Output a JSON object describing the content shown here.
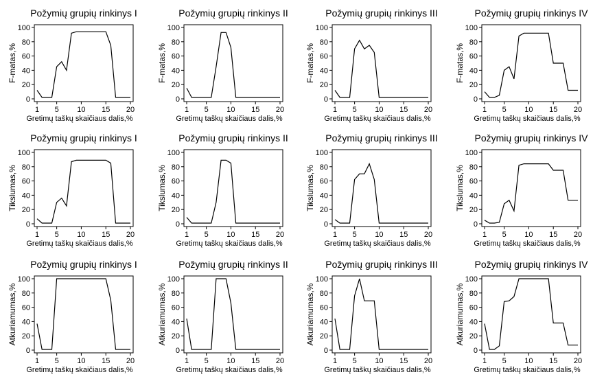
{
  "chart_data": [
    {
      "type": "line",
      "title": "Požymių grupių rinkinys I",
      "xlabel": "Gretimų taškų skaičiaus dalis,%",
      "ylabel": "F-matas,%",
      "xlim": [
        1,
        20
      ],
      "ylim": [
        0,
        100
      ],
      "xticks": [
        "1",
        "5",
        "10",
        "15",
        "20"
      ],
      "yticks": [
        "0",
        "20",
        "40",
        "60",
        "80",
        "100"
      ],
      "series": [
        {
          "x": [
            1,
            2,
            3,
            4,
            5,
            6,
            7,
            8,
            9,
            10,
            11,
            12,
            13,
            14,
            15,
            16,
            17,
            18,
            19,
            20
          ],
          "y": [
            12,
            2,
            2,
            2,
            45,
            52,
            40,
            92,
            94,
            94,
            94,
            94,
            94,
            94,
            94,
            75,
            2,
            2,
            2,
            2
          ]
        }
      ]
    },
    {
      "type": "line",
      "title": "Požymių grupių rinkinys II",
      "xlabel": "Gretimų taškų skaičiaus dalis,%",
      "ylabel": "F-matas,%",
      "xlim": [
        1,
        20
      ],
      "ylim": [
        0,
        100
      ],
      "xticks": [
        "1",
        "5",
        "10",
        "15",
        "20"
      ],
      "yticks": [
        "0",
        "20",
        "40",
        "60",
        "80",
        "100"
      ],
      "series": [
        {
          "x": [
            1,
            2,
            3,
            4,
            5,
            6,
            7,
            8,
            9,
            10,
            11,
            12,
            13,
            14,
            15,
            16,
            17,
            18,
            19,
            20
          ],
          "y": [
            15,
            2,
            2,
            2,
            2,
            2,
            45,
            93,
            93,
            72,
            2,
            2,
            2,
            2,
            2,
            2,
            2,
            2,
            2,
            2
          ]
        }
      ]
    },
    {
      "type": "line",
      "title": "Požymių grupių rinkinys III",
      "xlabel": "Gretimų taškų skaičiaus dalis,%",
      "ylabel": "F-matas,%",
      "xlim": [
        1,
        20
      ],
      "ylim": [
        0,
        100
      ],
      "xticks": [
        "1",
        "5",
        "10",
        "15",
        "20"
      ],
      "yticks": [
        "0",
        "20",
        "40",
        "60",
        "80",
        "100"
      ],
      "series": [
        {
          "x": [
            1,
            2,
            3,
            4,
            5,
            6,
            7,
            8,
            9,
            10,
            11,
            12,
            13,
            14,
            15,
            16,
            17,
            18,
            19,
            20
          ],
          "y": [
            12,
            2,
            2,
            2,
            70,
            82,
            70,
            75,
            65,
            2,
            2,
            2,
            2,
            2,
            2,
            2,
            2,
            2,
            2,
            2
          ]
        }
      ]
    },
    {
      "type": "line",
      "title": "Požymių grupių rinkinys IV",
      "xlabel": "Gretimų taškų skaičiaus dalis,%",
      "ylabel": "F-matas,%",
      "xlim": [
        1,
        20
      ],
      "ylim": [
        0,
        100
      ],
      "xticks": [
        "1",
        "5",
        "10",
        "15",
        "20"
      ],
      "yticks": [
        "0",
        "20",
        "40",
        "60",
        "80",
        "100"
      ],
      "series": [
        {
          "x": [
            1,
            2,
            3,
            4,
            5,
            6,
            7,
            8,
            9,
            10,
            11,
            12,
            13,
            14,
            15,
            16,
            17,
            18,
            19,
            20
          ],
          "y": [
            10,
            2,
            2,
            5,
            40,
            45,
            28,
            88,
            92,
            92,
            92,
            92,
            92,
            92,
            50,
            50,
            50,
            12,
            12,
            12
          ]
        }
      ]
    },
    {
      "type": "line",
      "title": "Požymių grupių rinkinys I",
      "xlabel": "Gretimų taškų skaičiaus dalis,%",
      "ylabel": "Tikslumas,%",
      "xlim": [
        1,
        20
      ],
      "ylim": [
        0,
        100
      ],
      "xticks": [
        "1",
        "5",
        "10",
        "15",
        "20"
      ],
      "yticks": [
        "0",
        "20",
        "40",
        "60",
        "80",
        "100"
      ],
      "series": [
        {
          "x": [
            1,
            2,
            3,
            4,
            5,
            6,
            7,
            8,
            9,
            10,
            11,
            12,
            13,
            14,
            15,
            16,
            17,
            18,
            19,
            20
          ],
          "y": [
            7,
            1,
            1,
            1,
            30,
            36,
            25,
            87,
            89,
            89,
            89,
            89,
            89,
            89,
            89,
            85,
            1,
            1,
            1,
            1
          ]
        }
      ]
    },
    {
      "type": "line",
      "title": "Požymių grupių rinkinys II",
      "xlabel": "Gretimų taškų skaičiaus dalis,%",
      "ylabel": "Tikslumas,%",
      "xlim": [
        1,
        20
      ],
      "ylim": [
        0,
        100
      ],
      "xticks": [
        "1",
        "5",
        "10",
        "15",
        "20"
      ],
      "yticks": [
        "0",
        "20",
        "40",
        "60",
        "80",
        "100"
      ],
      "series": [
        {
          "x": [
            1,
            2,
            3,
            4,
            5,
            6,
            7,
            8,
            9,
            10,
            11,
            12,
            13,
            14,
            15,
            16,
            17,
            18,
            19,
            20
          ],
          "y": [
            9,
            1,
            1,
            1,
            1,
            1,
            30,
            89,
            89,
            85,
            1,
            1,
            1,
            1,
            1,
            1,
            1,
            1,
            1,
            1
          ]
        }
      ]
    },
    {
      "type": "line",
      "title": "Požymių grupių rinkinys III",
      "xlabel": "Gretimų taškų skaičiaus dalis,%",
      "ylabel": "Tikslumas,%",
      "xlim": [
        1,
        20
      ],
      "ylim": [
        0,
        100
      ],
      "xticks": [
        "1",
        "5",
        "10",
        "15",
        "20"
      ],
      "yticks": [
        "0",
        "20",
        "40",
        "60",
        "80",
        "100"
      ],
      "series": [
        {
          "x": [
            1,
            2,
            3,
            4,
            5,
            6,
            7,
            8,
            9,
            10,
            11,
            12,
            13,
            14,
            15,
            16,
            17,
            18,
            19,
            20
          ],
          "y": [
            6,
            1,
            1,
            1,
            62,
            70,
            70,
            84,
            62,
            1,
            1,
            1,
            1,
            1,
            1,
            1,
            1,
            1,
            1,
            1
          ]
        }
      ]
    },
    {
      "type": "line",
      "title": "Požymių grupių rinkinys IV",
      "xlabel": "Gretimų taškų skaičiaus dalis,%",
      "ylabel": "Tikslumas,%",
      "xlim": [
        1,
        20
      ],
      "ylim": [
        0,
        100
      ],
      "xticks": [
        "1",
        "5",
        "10",
        "15",
        "20"
      ],
      "yticks": [
        "0",
        "20",
        "40",
        "60",
        "80",
        "100"
      ],
      "series": [
        {
          "x": [
            1,
            2,
            3,
            4,
            5,
            6,
            7,
            8,
            9,
            10,
            11,
            12,
            13,
            14,
            15,
            16,
            17,
            18,
            19,
            20
          ],
          "y": [
            5,
            1,
            1,
            2,
            28,
            33,
            18,
            82,
            84,
            84,
            84,
            84,
            84,
            84,
            75,
            75,
            75,
            33,
            33,
            33
          ]
        }
      ]
    },
    {
      "type": "line",
      "title": "Požymių grupių rinkinys I",
      "xlabel": "Gretimų taškų skaičiaus dalis,%",
      "ylabel": "Atkuriamumas,%",
      "xlim": [
        1,
        20
      ],
      "ylim": [
        0,
        100
      ],
      "xticks": [
        "1",
        "5",
        "10",
        "15",
        "20"
      ],
      "yticks": [
        "0",
        "20",
        "40",
        "60",
        "80",
        "100"
      ],
      "series": [
        {
          "x": [
            1,
            2,
            3,
            4,
            5,
            6,
            7,
            8,
            9,
            10,
            11,
            12,
            13,
            14,
            15,
            16,
            17,
            18,
            19,
            20
          ],
          "y": [
            37,
            1,
            1,
            1,
            100,
            100,
            100,
            100,
            100,
            100,
            100,
            100,
            100,
            100,
            100,
            70,
            1,
            1,
            1,
            1
          ]
        }
      ]
    },
    {
      "type": "line",
      "title": "Požymių grupių rinkinys II",
      "xlabel": "Gretimų taškų skaičiaus dalis,%",
      "ylabel": "Atkuriamumas,%",
      "xlim": [
        1,
        20
      ],
      "ylim": [
        0,
        100
      ],
      "xticks": [
        "1",
        "5",
        "10",
        "15",
        "20"
      ],
      "yticks": [
        "0",
        "20",
        "40",
        "60",
        "80",
        "100"
      ],
      "series": [
        {
          "x": [
            1,
            2,
            3,
            4,
            5,
            6,
            7,
            8,
            9,
            10,
            11,
            12,
            13,
            14,
            15,
            16,
            17,
            18,
            19,
            20
          ],
          "y": [
            44,
            1,
            1,
            1,
            1,
            1,
            100,
            100,
            100,
            66,
            1,
            1,
            1,
            1,
            1,
            1,
            1,
            1,
            1,
            1
          ]
        }
      ]
    },
    {
      "type": "line",
      "title": "Požymių grupių rinkinys III",
      "xlabel": "Gretimų taškų skaičiaus dalis,%",
      "ylabel": "Atkuriamumas,%",
      "xlim": [
        1,
        20
      ],
      "ylim": [
        0,
        100
      ],
      "xticks": [
        "1",
        "5",
        "10",
        "15",
        "20"
      ],
      "yticks": [
        "0",
        "20",
        "40",
        "60",
        "80",
        "100"
      ],
      "series": [
        {
          "x": [
            1,
            2,
            3,
            4,
            5,
            6,
            7,
            8,
            9,
            10,
            11,
            12,
            13,
            14,
            15,
            16,
            17,
            18,
            19,
            20
          ],
          "y": [
            44,
            1,
            1,
            1,
            76,
            100,
            69,
            69,
            69,
            1,
            1,
            1,
            1,
            1,
            1,
            1,
            1,
            1,
            1,
            1
          ]
        }
      ]
    },
    {
      "type": "line",
      "title": "Požymių grupių rinkinys IV",
      "xlabel": "Gretimų taškų skaičiaus dalis,%",
      "ylabel": "Atkuriamumas,%",
      "xlim": [
        1,
        20
      ],
      "ylim": [
        0,
        100
      ],
      "xticks": [
        "1",
        "5",
        "10",
        "15",
        "20"
      ],
      "yticks": [
        "0",
        "20",
        "40",
        "60",
        "80",
        "100"
      ],
      "series": [
        {
          "x": [
            1,
            2,
            3,
            4,
            5,
            6,
            7,
            8,
            9,
            10,
            11,
            12,
            13,
            14,
            15,
            16,
            17,
            18,
            19,
            20
          ],
          "y": [
            37,
            1,
            1,
            6,
            68,
            69,
            75,
            100,
            100,
            100,
            100,
            100,
            100,
            100,
            38,
            38,
            38,
            7,
            7,
            7
          ]
        }
      ]
    }
  ]
}
